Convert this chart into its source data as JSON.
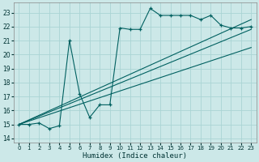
{
  "title": "",
  "xlabel": "Humidex (Indice chaleur)",
  "xlim": [
    -0.5,
    23.5
  ],
  "ylim": [
    13.7,
    23.7
  ],
  "yticks": [
    14,
    15,
    16,
    17,
    18,
    19,
    20,
    21,
    22,
    23
  ],
  "xticks": [
    0,
    1,
    2,
    3,
    4,
    5,
    6,
    7,
    8,
    9,
    10,
    11,
    12,
    13,
    14,
    15,
    16,
    17,
    18,
    19,
    20,
    21,
    22,
    23
  ],
  "bg_color": "#cce8e8",
  "grid_color": "#aad4d4",
  "line_color": "#006060",
  "main_x": [
    0,
    1,
    2,
    3,
    4,
    5,
    6,
    7,
    8,
    9,
    10,
    11,
    12,
    13,
    14,
    15,
    16,
    17,
    18,
    19,
    20,
    21,
    22,
    23
  ],
  "main_y": [
    15.0,
    15.0,
    15.1,
    14.7,
    14.9,
    21.0,
    17.2,
    15.5,
    16.4,
    16.4,
    21.9,
    21.8,
    21.8,
    23.3,
    22.8,
    22.8,
    22.8,
    22.8,
    22.5,
    22.8,
    22.1,
    21.9,
    21.9,
    22.0
  ],
  "ref_lines": [
    {
      "x": [
        0,
        23
      ],
      "y": [
        15.0,
        22.5
      ]
    },
    {
      "x": [
        0,
        23
      ],
      "y": [
        15.0,
        21.8
      ]
    },
    {
      "x": [
        0,
        23
      ],
      "y": [
        15.0,
        20.5
      ]
    }
  ]
}
